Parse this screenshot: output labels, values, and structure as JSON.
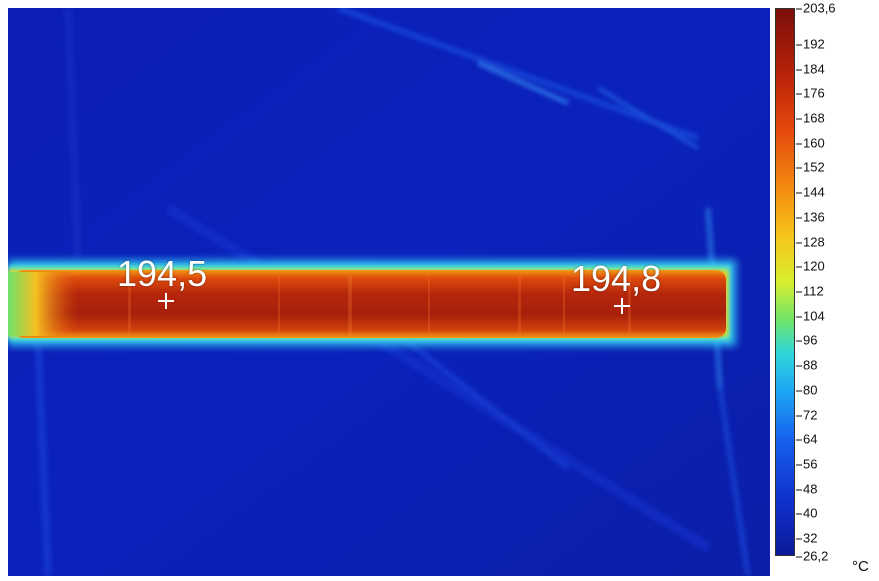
{
  "spots": [
    {
      "label": "194,5"
    },
    {
      "label": "194,8"
    }
  ],
  "scale": {
    "ticks": [
      "203,6",
      "192",
      "184",
      "176",
      "168",
      "160",
      "152",
      "144",
      "136",
      "128",
      "120",
      "112",
      "104",
      "96",
      "88",
      "80",
      "72",
      "64",
      "56",
      "48",
      "40",
      "32",
      "26,2"
    ],
    "unit": "°C",
    "min": 26.2,
    "max": 203.6
  },
  "colors": {
    "background": "#0a1fb6",
    "hot": "#9e1c0c",
    "warm": "#e2470e",
    "edge": "#30d6f5"
  }
}
